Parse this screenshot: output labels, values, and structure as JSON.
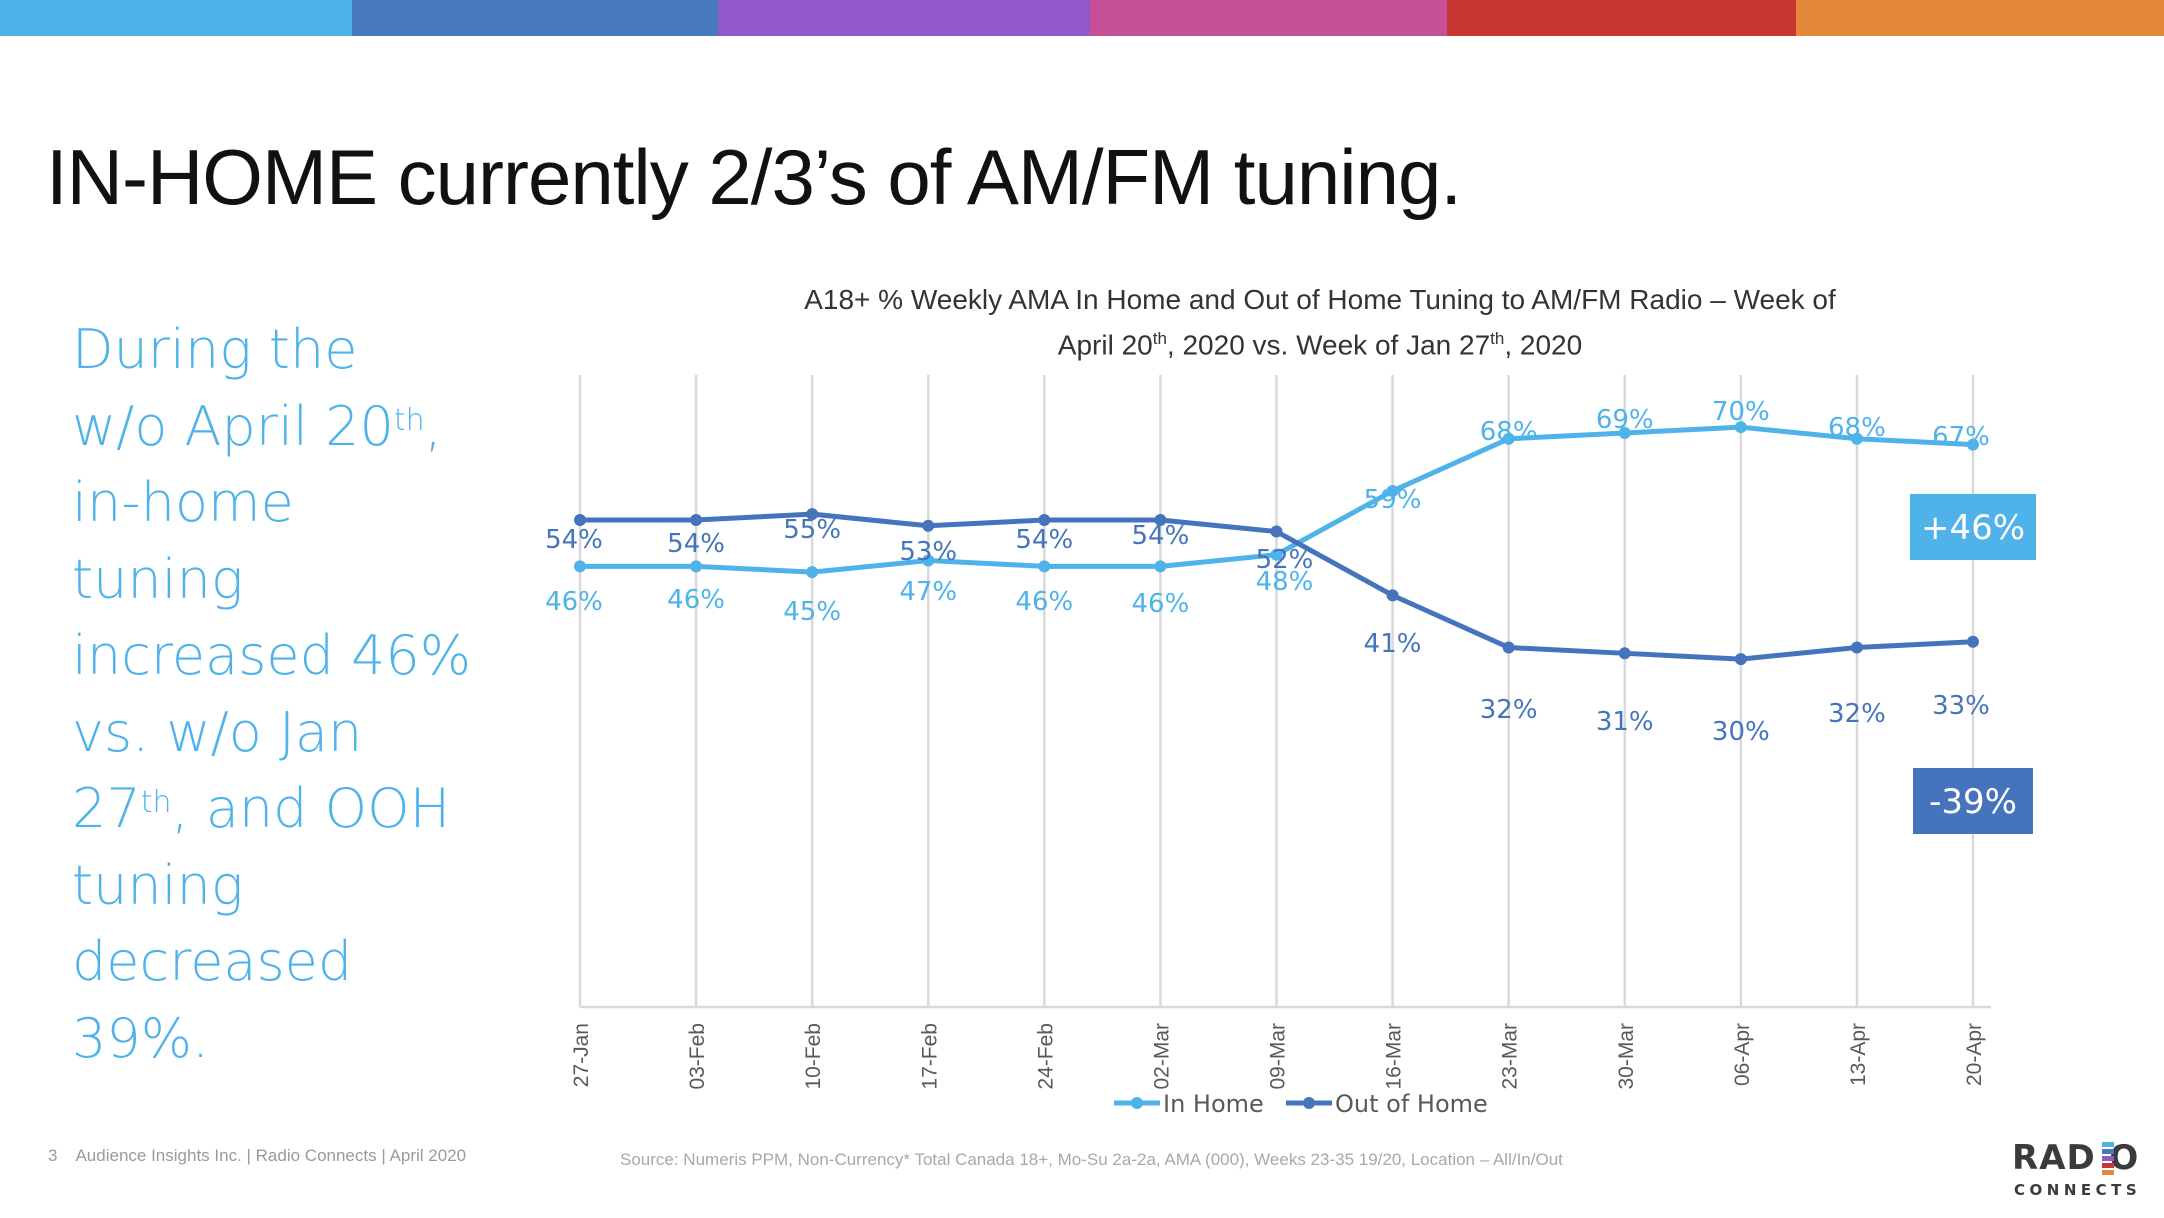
{
  "top_bar_colors": [
    "#4fb3ea",
    "#4779bf",
    "#9159c9",
    "#c65096",
    "#c93733",
    "#e3873a"
  ],
  "slide_title": "IN-HOME currently 2/3’s of AM/FM tuning.",
  "side_text": {
    "lines": [
      "During the",
      "w/o April 20",
      "th",
      ",",
      "in-home",
      "tuning",
      "increased 46%",
      "vs. w/o Jan",
      "27",
      "th",
      ", and OOH",
      "tuning",
      "decreased",
      "39%."
    ]
  },
  "chart_data": {
    "type": "line",
    "title_line1": "A18+ % Weekly AMA In Home and Out of Home Tuning to AM/FM Radio – Week of",
    "title_line2_parts": [
      "April 20",
      "th",
      ", 2020 vs. Week of Jan 27",
      "th",
      ", 2020"
    ],
    "categories": [
      "27-Jan",
      "03-Feb",
      "10-Feb",
      "17-Feb",
      "24-Feb",
      "02-Mar",
      "09-Mar",
      "16-Mar",
      "23-Mar",
      "30-Mar",
      "06-Apr",
      "13-Apr",
      "20-Apr"
    ],
    "series": [
      {
        "name": "In Home",
        "color": "#4fb3ea",
        "values": [
          46,
          46,
          45,
          47,
          46,
          46,
          48,
          59,
          68,
          69,
          70,
          68,
          67
        ],
        "labels": [
          "46%",
          "46%",
          "45%",
          "47%",
          "46%",
          "46%",
          "48%",
          "59%",
          "68%",
          "69%",
          "70%",
          "68%",
          "67%"
        ]
      },
      {
        "name": "Out of Home",
        "color": "#4574bd",
        "values": [
          54,
          54,
          55,
          53,
          54,
          54,
          52,
          41,
          32,
          31,
          30,
          32,
          33
        ],
        "labels": [
          "54%",
          "54%",
          "55%",
          "53%",
          "54%",
          "54%",
          "52%",
          "41%",
          "32%",
          "31%",
          "30%",
          "32%",
          "33%"
        ]
      }
    ],
    "ylim": [
      -30,
      79
    ],
    "y_axis_visible": false,
    "grid": "vertical",
    "legend": "bottom",
    "annotations": [
      {
        "text": "+46%",
        "series": "In Home",
        "color": "#4fb3ea"
      },
      {
        "text": "-39%",
        "series": "Out of Home",
        "color": "#4574bd"
      }
    ]
  },
  "footer": {
    "page_number": "3",
    "credit": "Audience Insights Inc. | Radio Connects | April 2020",
    "source": "Source:  Numeris PPM, Non-Currency* Total Canada 18+, Mo-Su 2a-2a, AMA (000), Weeks 23-35 19/20, Location – All/In/Out"
  },
  "logo": {
    "word": "RADIO",
    "sub": "CONNECTS",
    "bar_colors": [
      "#4fb3ea",
      "#4779bf",
      "#9159c9",
      "#c93733",
      "#e3873a"
    ]
  }
}
